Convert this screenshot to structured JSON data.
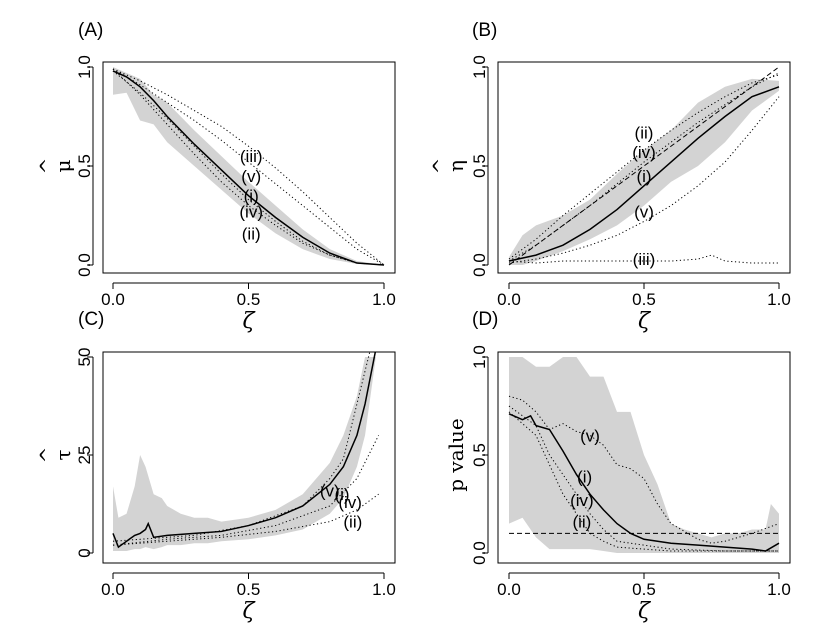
{
  "chart_data": [
    {
      "type": "line",
      "panel_label": "(A)",
      "xlabel": "ζ",
      "ylabel": "μ",
      "ylabel_hat": "^",
      "xlim": [
        0,
        1
      ],
      "ylim": [
        0,
        1
      ],
      "xticks": [
        0,
        0.5,
        1
      ],
      "xtick_labels": [
        "0.0",
        "0.5",
        "1.0"
      ],
      "yticks": [
        0,
        0.5,
        1
      ],
      "ytick_labels": [
        "0.0",
        "0.5",
        "1.0"
      ],
      "band": {
        "x": [
          0,
          0.05,
          0.1,
          0.15,
          0.2,
          0.3,
          0.4,
          0.5,
          0.6,
          0.7,
          0.8,
          0.9,
          1
        ],
        "lower": [
          0.86,
          0.87,
          0.73,
          0.71,
          0.62,
          0.5,
          0.38,
          0.26,
          0.16,
          0.08,
          0.03,
          0.005,
          0
        ],
        "upper": [
          1.0,
          0.97,
          0.94,
          0.86,
          0.82,
          0.68,
          0.55,
          0.42,
          0.3,
          0.18,
          0.08,
          0.02,
          0
        ]
      },
      "series": [
        {
          "name": "(i)",
          "style": "solid",
          "x": [
            0,
            0.05,
            0.1,
            0.15,
            0.2,
            0.3,
            0.4,
            0.5,
            0.6,
            0.7,
            0.8,
            0.9,
            1
          ],
          "y": [
            0.98,
            0.95,
            0.9,
            0.83,
            0.75,
            0.61,
            0.48,
            0.35,
            0.24,
            0.14,
            0.06,
            0.01,
            0
          ]
        },
        {
          "name": "(ii)",
          "style": "dotted",
          "x": [
            0,
            0.1,
            0.2,
            0.3,
            0.4,
            0.5,
            0.6,
            0.7,
            0.8,
            0.9,
            1
          ],
          "y": [
            0.99,
            0.86,
            0.71,
            0.56,
            0.42,
            0.3,
            0.2,
            0.11,
            0.05,
            0.01,
            0
          ]
        },
        {
          "name": "(iii)",
          "style": "dotted",
          "x": [
            0,
            0.1,
            0.2,
            0.3,
            0.4,
            0.5,
            0.6,
            0.7,
            0.8,
            0.9,
            1
          ],
          "y": [
            0.99,
            0.93,
            0.86,
            0.78,
            0.7,
            0.6,
            0.49,
            0.37,
            0.24,
            0.11,
            0
          ]
        },
        {
          "name": "(iv)",
          "style": "dotted",
          "x": [
            0,
            0.1,
            0.2,
            0.3,
            0.4,
            0.5,
            0.6,
            0.7,
            0.8,
            0.9,
            1
          ],
          "y": [
            0.98,
            0.87,
            0.74,
            0.6,
            0.46,
            0.33,
            0.22,
            0.12,
            0.05,
            0.01,
            0
          ]
        },
        {
          "name": "(v)",
          "style": "dotted",
          "x": [
            0,
            0.1,
            0.2,
            0.3,
            0.4,
            0.5,
            0.6,
            0.7,
            0.8,
            0.9,
            1
          ],
          "y": [
            0.99,
            0.91,
            0.82,
            0.73,
            0.63,
            0.52,
            0.41,
            0.3,
            0.19,
            0.08,
            0
          ]
        }
      ],
      "annotations": [
        {
          "text": "(iii)",
          "x": 0.51,
          "y": 0.55
        },
        {
          "text": "(v)",
          "x": 0.51,
          "y": 0.45
        },
        {
          "text": "(i)",
          "x": 0.51,
          "y": 0.35
        },
        {
          "text": "(iv)",
          "x": 0.51,
          "y": 0.27
        },
        {
          "text": "(ii)",
          "x": 0.51,
          "y": 0.16
        }
      ]
    },
    {
      "type": "line",
      "panel_label": "(B)",
      "xlabel": "ζ",
      "ylabel": "η",
      "ylabel_hat": "^",
      "xlim": [
        0,
        1
      ],
      "ylim": [
        0,
        1
      ],
      "xticks": [
        0,
        0.5,
        1
      ],
      "xtick_labels": [
        "0.0",
        "0.5",
        "1.0"
      ],
      "yticks": [
        0,
        0.5,
        1
      ],
      "ytick_labels": [
        "0.0",
        "0.5",
        "1.0"
      ],
      "reference_line": {
        "style": "dashed",
        "x": [
          0,
          1
        ],
        "y": [
          0,
          1
        ]
      },
      "band": {
        "x": [
          0,
          0.05,
          0.1,
          0.2,
          0.3,
          0.4,
          0.5,
          0.6,
          0.7,
          0.8,
          0.9,
          1
        ],
        "lower": [
          0,
          0.0,
          0.02,
          0.07,
          0.13,
          0.2,
          0.3,
          0.42,
          0.5,
          0.62,
          0.78,
          0.88
        ],
        "upper": [
          0.04,
          0.15,
          0.2,
          0.25,
          0.33,
          0.46,
          0.58,
          0.68,
          0.82,
          0.9,
          0.94,
          0.93
        ]
      },
      "series": [
        {
          "name": "(i)",
          "style": "solid",
          "x": [
            0,
            0.1,
            0.2,
            0.3,
            0.4,
            0.5,
            0.6,
            0.7,
            0.8,
            0.9,
            1
          ],
          "y": [
            0.02,
            0.05,
            0.1,
            0.18,
            0.28,
            0.4,
            0.52,
            0.64,
            0.75,
            0.85,
            0.9
          ]
        },
        {
          "name": "(ii)",
          "style": "dotted",
          "x": [
            0,
            0.1,
            0.2,
            0.3,
            0.4,
            0.5,
            0.6,
            0.7,
            0.8,
            0.9,
            1
          ],
          "y": [
            0.03,
            0.13,
            0.25,
            0.36,
            0.47,
            0.58,
            0.68,
            0.77,
            0.85,
            0.92,
            0.96
          ]
        },
        {
          "name": "(iii)",
          "style": "dotted",
          "x": [
            0,
            0.1,
            0.2,
            0.3,
            0.4,
            0.5,
            0.6,
            0.7,
            0.75,
            0.8,
            0.9,
            1
          ],
          "y": [
            0.02,
            0.01,
            0.02,
            0.02,
            0.02,
            0.02,
            0.02,
            0.03,
            0.05,
            0.02,
            0.01,
            0.01
          ]
        },
        {
          "name": "(iv)",
          "style": "dotted",
          "x": [
            0,
            0.1,
            0.2,
            0.3,
            0.4,
            0.5,
            0.6,
            0.7,
            0.8,
            0.9,
            1
          ],
          "y": [
            0.02,
            0.1,
            0.2,
            0.3,
            0.41,
            0.52,
            0.62,
            0.72,
            0.81,
            0.9,
            0.97
          ]
        },
        {
          "name": "(v)",
          "style": "dotted",
          "x": [
            0,
            0.1,
            0.2,
            0.3,
            0.4,
            0.5,
            0.6,
            0.7,
            0.8,
            0.9,
            1
          ],
          "y": [
            0.01,
            0.03,
            0.06,
            0.1,
            0.15,
            0.22,
            0.3,
            0.4,
            0.52,
            0.68,
            0.85
          ]
        }
      ],
      "annotations": [
        {
          "text": "(ii)",
          "x": 0.5,
          "y": 0.67
        },
        {
          "text": "(iv)",
          "x": 0.5,
          "y": 0.57
        },
        {
          "text": "(i)",
          "x": 0.5,
          "y": 0.45
        },
        {
          "text": "(v)",
          "x": 0.5,
          "y": 0.27
        },
        {
          "text": "(iii)",
          "x": 0.5,
          "y": 0.03
        }
      ]
    },
    {
      "type": "line",
      "panel_label": "(C)",
      "xlabel": "ζ",
      "ylabel": "τ",
      "ylabel_hat": "^",
      "xlim": [
        0,
        1
      ],
      "ylim": [
        0,
        50
      ],
      "xticks": [
        0,
        0.5,
        1
      ],
      "xtick_labels": [
        "0.0",
        "0.5",
        "1.0"
      ],
      "yticks": [
        0,
        25,
        50
      ],
      "ytick_labels": [
        "0",
        "25",
        "50"
      ],
      "band": {
        "x": [
          0,
          0.02,
          0.05,
          0.08,
          0.1,
          0.12,
          0.15,
          0.18,
          0.2,
          0.25,
          0.3,
          0.35,
          0.4,
          0.5,
          0.6,
          0.7,
          0.8,
          0.85,
          0.9,
          0.93,
          0.95,
          0.97
        ],
        "lower": [
          0.5,
          0.5,
          0.5,
          1,
          1,
          1.5,
          1,
          1.5,
          2,
          2,
          2.5,
          2.5,
          3,
          3.5,
          4.5,
          6,
          10,
          14,
          22,
          30,
          40,
          50
        ],
        "upper": [
          17,
          9,
          10,
          17,
          25,
          22,
          15,
          14,
          12,
          10,
          9,
          9,
          8,
          9,
          11,
          15,
          23,
          30,
          40,
          50,
          50,
          50
        ]
      },
      "series": [
        {
          "name": "(i)",
          "style": "solid",
          "x": [
            0,
            0.02,
            0.04,
            0.06,
            0.08,
            0.1,
            0.12,
            0.13,
            0.15,
            0.2,
            0.3,
            0.4,
            0.5,
            0.6,
            0.7,
            0.8,
            0.85,
            0.9,
            0.93,
            0.95,
            0.97
          ],
          "y": [
            5,
            1.5,
            2.5,
            3.5,
            4.5,
            5,
            6,
            7.5,
            4,
            4.5,
            5,
            5.5,
            7,
            9,
            12,
            17.5,
            22,
            30,
            38,
            45,
            52
          ]
        },
        {
          "name": "(ii)",
          "style": "dotted",
          "x": [
            0,
            0.2,
            0.4,
            0.6,
            0.8,
            0.9,
            0.98
          ],
          "y": [
            2,
            3,
            4,
            5.5,
            8,
            11,
            15
          ]
        },
        {
          "name": "(iv)",
          "style": "dotted",
          "x": [
            0,
            0.2,
            0.4,
            0.6,
            0.8,
            0.9,
            0.98
          ],
          "y": [
            2,
            3.5,
            4.5,
            7,
            12,
            19,
            30
          ]
        },
        {
          "name": "(v)",
          "style": "dotted",
          "x": [
            0,
            0.3,
            0.5,
            0.7,
            0.8,
            0.85,
            0.9,
            0.95
          ],
          "y": [
            3,
            4.5,
            7,
            12,
            19,
            24,
            38,
            52
          ]
        }
      ],
      "annotations": [
        {
          "text": "(v)",
          "x": 0.8,
          "y": 16
        },
        {
          "text": "(i)",
          "x": 0.845,
          "y": 15
        },
        {
          "text": "(iv)",
          "x": 0.875,
          "y": 13
        },
        {
          "text": "(ii)",
          "x": 0.885,
          "y": 8
        }
      ]
    },
    {
      "type": "line",
      "panel_label": "(D)",
      "xlabel": "ζ",
      "ylabel": "p value",
      "xlim": [
        0,
        1
      ],
      "ylim": [
        0,
        1
      ],
      "xticks": [
        0,
        0.5,
        1
      ],
      "xtick_labels": [
        "0.0",
        "0.5",
        "1.0"
      ],
      "yticks": [
        0,
        0.5,
        1
      ],
      "ytick_labels": [
        "0.0",
        "0.5",
        "1.0"
      ],
      "reference_line": {
        "style": "dashed",
        "x": [
          0,
          1
        ],
        "y": [
          0.1,
          0.1
        ]
      },
      "band": {
        "x": [
          0,
          0.05,
          0.1,
          0.15,
          0.2,
          0.25,
          0.3,
          0.35,
          0.4,
          0.45,
          0.5,
          0.55,
          0.6,
          0.65,
          0.7,
          0.75,
          0.8,
          0.85,
          0.9,
          0.95,
          0.97,
          1
        ],
        "lower": [
          0.15,
          0.18,
          0.08,
          0.02,
          0.02,
          0.02,
          0.02,
          0.01,
          0.0,
          0.0,
          0.0,
          0.0,
          0.0,
          0.0,
          0.0,
          0.0,
          0.0,
          0.0,
          0.0,
          0.0,
          0.0,
          0.0
        ],
        "upper": [
          1.0,
          1.0,
          0.95,
          0.95,
          1.0,
          1.0,
          0.9,
          0.9,
          0.72,
          0.72,
          0.5,
          0.35,
          0.15,
          0.12,
          0.1,
          0.08,
          0.1,
          0.1,
          0.12,
          0.12,
          0.25,
          0.2
        ]
      },
      "series": [
        {
          "name": "(i)",
          "style": "solid",
          "x": [
            0,
            0.05,
            0.08,
            0.1,
            0.15,
            0.2,
            0.25,
            0.3,
            0.35,
            0.4,
            0.45,
            0.5,
            0.55,
            0.6,
            0.7,
            0.8,
            0.9,
            0.95,
            1
          ],
          "y": [
            0.71,
            0.68,
            0.7,
            0.65,
            0.63,
            0.52,
            0.4,
            0.3,
            0.22,
            0.15,
            0.1,
            0.07,
            0.06,
            0.05,
            0.04,
            0.03,
            0.02,
            0.01,
            0.05
          ]
        },
        {
          "name": "(ii)",
          "style": "dotted",
          "x": [
            0,
            0.1,
            0.15,
            0.2,
            0.25,
            0.3,
            0.35,
            0.4,
            0.5,
            0.6,
            0.8,
            1
          ],
          "y": [
            0.72,
            0.6,
            0.45,
            0.3,
            0.2,
            0.1,
            0.06,
            0.03,
            0.02,
            0.01,
            0.01,
            0.01
          ]
        },
        {
          "name": "(iv)",
          "style": "dotted",
          "x": [
            0,
            0.1,
            0.15,
            0.2,
            0.25,
            0.3,
            0.35,
            0.4,
            0.5,
            0.6,
            0.8,
            1
          ],
          "y": [
            0.75,
            0.65,
            0.5,
            0.4,
            0.3,
            0.2,
            0.12,
            0.06,
            0.04,
            0.02,
            0.01,
            0.01
          ]
        },
        {
          "name": "(v)",
          "style": "dotted",
          "x": [
            0,
            0.05,
            0.1,
            0.15,
            0.2,
            0.25,
            0.3,
            0.35,
            0.4,
            0.45,
            0.5,
            0.55,
            0.6,
            0.7,
            0.75,
            0.8,
            0.85,
            0.9,
            1
          ],
          "y": [
            0.8,
            0.78,
            0.72,
            0.63,
            0.66,
            0.62,
            0.6,
            0.55,
            0.45,
            0.43,
            0.38,
            0.25,
            0.15,
            0.07,
            0.05,
            0.06,
            0.08,
            0.1,
            0.15
          ]
        }
      ],
      "annotations": [
        {
          "text": "(v)",
          "x": 0.3,
          "y": 0.6
        },
        {
          "text": "(i)",
          "x": 0.28,
          "y": 0.39
        },
        {
          "text": "(iv)",
          "x": 0.27,
          "y": 0.27
        },
        {
          "text": "(ii)",
          "x": 0.27,
          "y": 0.16
        }
      ]
    }
  ]
}
